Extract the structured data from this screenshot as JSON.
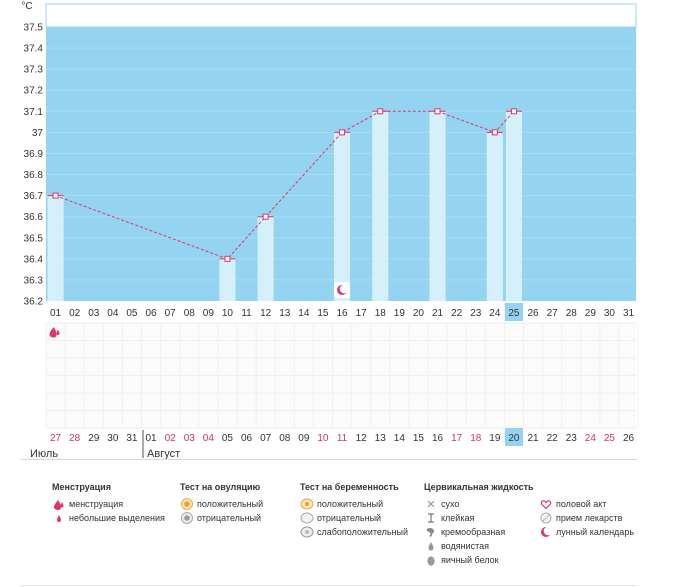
{
  "chart_data": {
    "type": "line",
    "ylabel": "°C",
    "ylim": [
      36.2,
      37.6
    ],
    "y_ticks": [
      "37.5",
      "37.4",
      "37.3",
      "37.2",
      "37.1",
      "37",
      "36.9",
      "36.8",
      "36.7",
      "36.6",
      "36.5",
      "36.4",
      "36.3",
      "36.2"
    ],
    "day_labels": [
      "01",
      "02",
      "03",
      "04",
      "05",
      "06",
      "07",
      "08",
      "09",
      "10",
      "11",
      "12",
      "13",
      "14",
      "15",
      "16",
      "17",
      "18",
      "19",
      "20",
      "21",
      "22",
      "23",
      "24",
      "25",
      "26",
      "27",
      "28",
      "29",
      "30",
      "31"
    ],
    "highlight_day": "25",
    "series": [
      {
        "points": [
          {
            "day": "01",
            "value": 36.7
          },
          {
            "day": "10",
            "value": 36.4
          },
          {
            "day": "12",
            "value": 36.6
          },
          {
            "day": "16",
            "value": 37.0
          },
          {
            "day": "18",
            "value": 37.1
          },
          {
            "day": "21",
            "value": 37.1
          },
          {
            "day": "24",
            "value": 37.0
          },
          {
            "day": "25",
            "value": 37.1
          }
        ]
      }
    ],
    "line_color": "#e0336b",
    "plot_bg": "#94d4f0",
    "bar_color": "#d6f0fb",
    "markers": [
      {
        "day": "16",
        "icon": "moon-icon"
      },
      {
        "day": "01",
        "row": "menstruation",
        "icon": "blood-drop-icon"
      }
    ]
  },
  "cycle_days": [
    {
      "label": "27",
      "red": true
    },
    {
      "label": "28",
      "red": true
    },
    {
      "label": "29",
      "red": false
    },
    {
      "label": "30",
      "red": false
    },
    {
      "label": "31",
      "red": false
    },
    {
      "label": "01",
      "red": false
    },
    {
      "label": "02",
      "red": true
    },
    {
      "label": "03",
      "red": true
    },
    {
      "label": "04",
      "red": true
    },
    {
      "label": "05",
      "red": false
    },
    {
      "label": "06",
      "red": false
    },
    {
      "label": "07",
      "red": false
    },
    {
      "label": "08",
      "red": false
    },
    {
      "label": "09",
      "red": false
    },
    {
      "label": "10",
      "red": true
    },
    {
      "label": "11",
      "red": true
    },
    {
      "label": "12",
      "red": false
    },
    {
      "label": "13",
      "red": false
    },
    {
      "label": "14",
      "red": false
    },
    {
      "label": "15",
      "red": false
    },
    {
      "label": "16",
      "red": false
    },
    {
      "label": "17",
      "red": true
    },
    {
      "label": "18",
      "red": true
    },
    {
      "label": "19",
      "red": false
    },
    {
      "label": "20",
      "red": false,
      "highlight": true
    },
    {
      "label": "21",
      "red": false
    },
    {
      "label": "22",
      "red": false
    },
    {
      "label": "23",
      "red": false
    },
    {
      "label": "24",
      "red": true
    },
    {
      "label": "25",
      "red": true
    },
    {
      "label": "26",
      "red": false
    }
  ],
  "months": {
    "july": "Июль",
    "august": "Август"
  },
  "legend": {
    "menstruation": {
      "title": "Менструация",
      "items": [
        {
          "label": "менструация",
          "icon": "blood-drop-icon"
        },
        {
          "label": "небольшие выделения",
          "icon": "small-drop-icon"
        }
      ]
    },
    "ovulation": {
      "title": "Тест на овуляцию",
      "items": [
        {
          "label": "положительный",
          "icon": "ovulation-positive-icon"
        },
        {
          "label": "отрицательный",
          "icon": "ovulation-negative-icon"
        }
      ]
    },
    "pregnancy": {
      "title": "Тест на беременность",
      "items": [
        {
          "label": "положительный",
          "icon": "pregnancy-positive-icon"
        },
        {
          "label": "отрицательный",
          "icon": "pregnancy-negative-icon"
        },
        {
          "label": "слабоположительный",
          "icon": "pregnancy-weak-icon"
        }
      ]
    },
    "cervical": {
      "title": "Цервикальная жидкость",
      "items": [
        {
          "label": "сухо",
          "icon": "cross-icon"
        },
        {
          "label": "клейкая",
          "icon": "sticky-icon"
        },
        {
          "label": "кремообразная",
          "icon": "creamy-icon"
        },
        {
          "label": "водянистая",
          "icon": "watery-icon"
        },
        {
          "label": "яичный белок",
          "icon": "egg-white-icon"
        }
      ]
    },
    "other": {
      "items": [
        {
          "label": "половой акт",
          "icon": "heart-icon"
        },
        {
          "label": "прием лекарств",
          "icon": "pill-icon"
        },
        {
          "label": "лунный календарь",
          "icon": "moon-icon"
        }
      ]
    }
  }
}
